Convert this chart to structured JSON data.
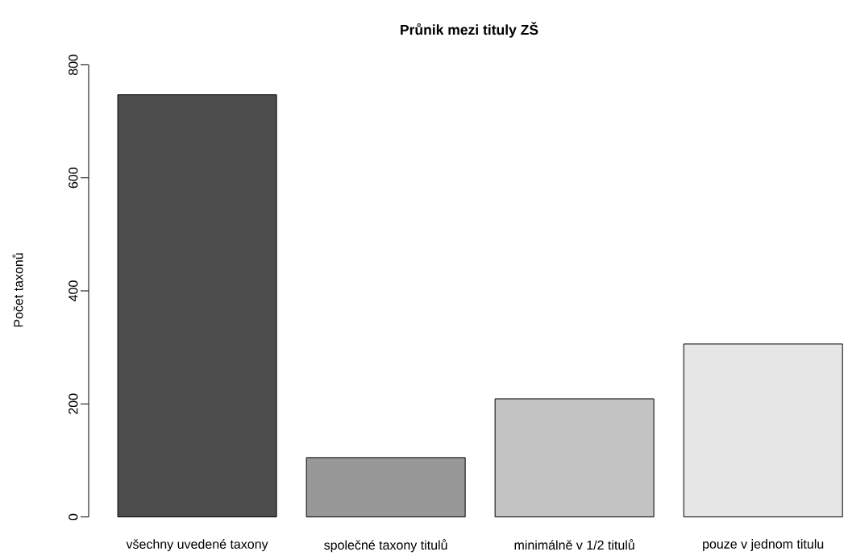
{
  "chart_data": {
    "type": "bar",
    "title": "Průnik mezi tituly ZŠ",
    "ylabel": "Počet taxonů",
    "categories": [
      "všechny uvedené taxony",
      "společné taxony titulů",
      "minimálně v 1/2 titulů",
      "pouze v jednom titulu"
    ],
    "values": [
      747,
      105,
      209,
      306
    ],
    "colors": [
      "#4d4d4d",
      "#989898",
      "#c3c3c3",
      "#e6e6e6"
    ],
    "ylim": [
      0,
      800
    ],
    "yticks": [
      0,
      200,
      400,
      600,
      800
    ]
  }
}
